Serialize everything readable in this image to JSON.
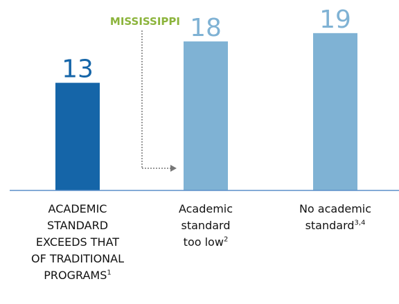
{
  "chart_data": {
    "type": "bar",
    "categories": [
      "ACADEMIC STANDARD EXCEEDS THAT OF TRADITIONAL PROGRAMS",
      "Academic standard too low",
      "No academic standard"
    ],
    "footnotes": [
      "1",
      "2",
      "3,4"
    ],
    "values": [
      13,
      18,
      19
    ],
    "colors": [
      "#1565a8",
      "#7fb2d4",
      "#7fb2d4"
    ],
    "ylim": [
      0,
      23
    ],
    "annotation": "MISSISSIPPI",
    "annotation_color": "#8cb43c"
  }
}
